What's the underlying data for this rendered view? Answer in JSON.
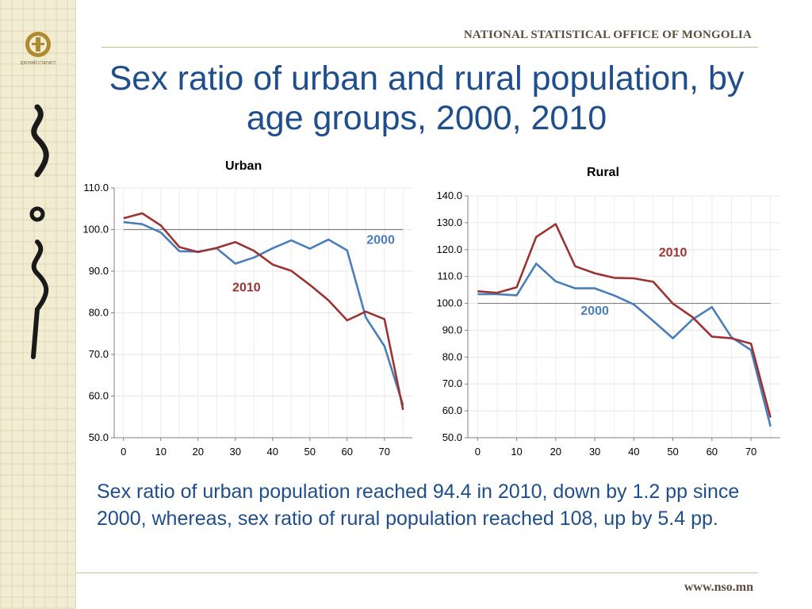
{
  "header": {
    "organization": "NATIONAL STATISTICAL OFFICE OF MONGOLIA",
    "title": "Sex ratio of urban and rural population, by age groups, 2000, 2010"
  },
  "logo": {
    "caption": "ҮНДЭСНИЙ СТАТИСТИК"
  },
  "footer": {
    "website": "www.nso.mn"
  },
  "summary": "Sex ratio of urban population reached 94.4 in 2010, down by 1.2 pp since 2000, whereas, sex ratio of rural population reached 108, up by 5.4 pp.",
  "colors": {
    "title": "#1f4e8c",
    "series_2000": "#4a7ebb",
    "series_2010": "#9b3333",
    "reference": "#808080"
  },
  "chart_data": [
    {
      "type": "line",
      "title": "Urban",
      "x": [
        0,
        5,
        10,
        15,
        20,
        25,
        30,
        35,
        40,
        45,
        50,
        55,
        60,
        65,
        70,
        75
      ],
      "x_ticks": [
        "0",
        "10",
        "20",
        "30",
        "40",
        "50",
        "60",
        "70"
      ],
      "xlim": [
        -2.5,
        77.5
      ],
      "ylim": [
        50,
        110
      ],
      "y_ticks": [
        "50.0",
        "60.0",
        "70.0",
        "80.0",
        "90.0",
        "100.0",
        "110.0"
      ],
      "reference_line": 100,
      "series": [
        {
          "name": "2000",
          "values": [
            101.8,
            101.3,
            99.3,
            94.8,
            94.7,
            95.5,
            91.8,
            93.3,
            95.5,
            97.4,
            95.4,
            97.6,
            95.0,
            78.9,
            72.0,
            57.8
          ]
        },
        {
          "name": "2010",
          "values": [
            102.7,
            103.9,
            101.0,
            95.8,
            94.6,
            95.6,
            97.0,
            94.9,
            91.6,
            90.1,
            86.7,
            83.0,
            78.2,
            80.3,
            78.5,
            56.7
          ]
        }
      ],
      "labels": [
        {
          "series": "2000",
          "text": "2000",
          "x": 69,
          "y": 96.6
        },
        {
          "series": "2010",
          "text": "2010",
          "x": 33,
          "y": 85.1
        }
      ]
    },
    {
      "type": "line",
      "title": "Rural",
      "x": [
        0,
        5,
        10,
        15,
        20,
        25,
        30,
        35,
        40,
        45,
        50,
        55,
        60,
        65,
        70,
        75
      ],
      "x_ticks": [
        "0",
        "10",
        "20",
        "30",
        "40",
        "50",
        "60",
        "70"
      ],
      "xlim": [
        -2.5,
        77.5
      ],
      "ylim": [
        50,
        140
      ],
      "y_ticks": [
        "50.0",
        "60.0",
        "70.0",
        "80.0",
        "90.0",
        "100.0",
        "110.0",
        "120.0",
        "130.0",
        "140.0"
      ],
      "reference_line": 100,
      "series": [
        {
          "name": "2000",
          "values": [
            103.4,
            103.4,
            103.0,
            114.8,
            108.2,
            105.6,
            105.6,
            102.9,
            99.6,
            93.4,
            87.0,
            94.0,
            98.6,
            87.4,
            82.6,
            54.2
          ]
        },
        {
          "name": "2010",
          "values": [
            104.5,
            103.9,
            106.0,
            124.7,
            129.5,
            113.8,
            111.2,
            109.5,
            109.3,
            108.0,
            99.9,
            94.9,
            87.6,
            87.0,
            85.0,
            57.5
          ]
        }
      ],
      "labels": [
        {
          "series": "2000",
          "text": "2000",
          "x": 30,
          "y": 95.7
        },
        {
          "series": "2010",
          "text": "2010",
          "x": 50,
          "y": 117.4
        }
      ]
    }
  ]
}
